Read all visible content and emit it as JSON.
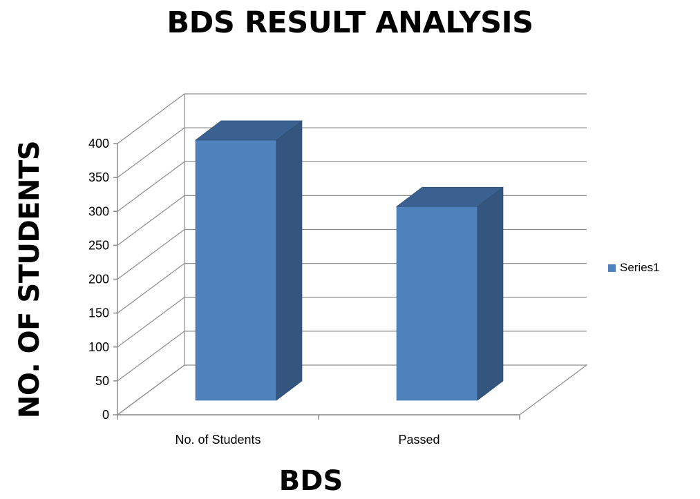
{
  "chart_data": {
    "type": "bar",
    "title": "BDS RESULT ANALYSIS",
    "xlabel": "BDS",
    "ylabel": "NO. OF STUDENTS",
    "categories": [
      "No. of Students",
      "Passed"
    ],
    "series": [
      {
        "name": "Series1",
        "values": [
          396,
          298
        ],
        "color": "#4F81BD"
      }
    ],
    "ylim": [
      0,
      400
    ],
    "yticks": [
      "0",
      "50",
      "100",
      "150",
      "200",
      "250",
      "300",
      "350",
      "400"
    ],
    "grid": true,
    "legend": "right",
    "style": "3d-column"
  }
}
